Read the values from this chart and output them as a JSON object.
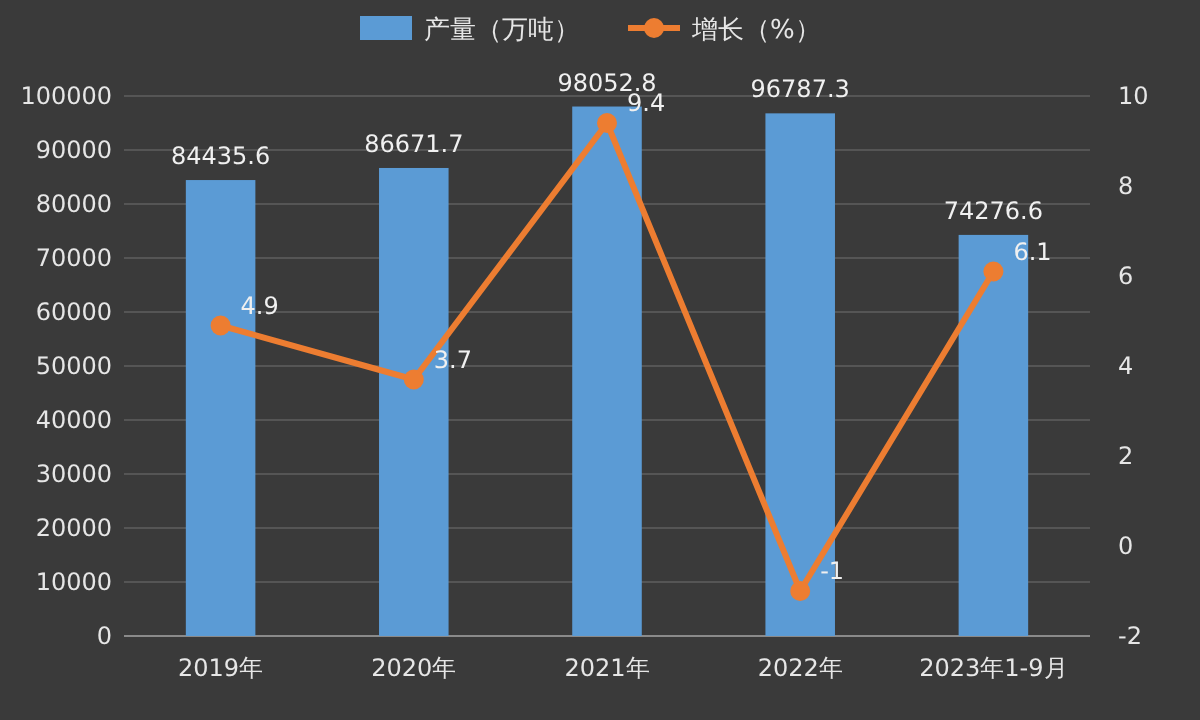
{
  "chart_data": {
    "type": "bar",
    "categories": [
      "2019年",
      "2020年",
      "2021年",
      "2022年",
      "2023年1-9月"
    ],
    "series": [
      {
        "name": "产量（万吨）",
        "color": "#5b9bd5",
        "values": [
          84435.6,
          86671.7,
          98052.8,
          96787.3,
          74276.6
        ]
      },
      {
        "name": "增长（%）",
        "type": "line",
        "axis": "y2",
        "color": "#ed7d31",
        "values": [
          4.9,
          3.7,
          9.4,
          -1,
          6.1
        ]
      }
    ],
    "ylim": [
      0,
      100000
    ],
    "yticks": [
      0,
      10000,
      20000,
      30000,
      40000,
      50000,
      60000,
      70000,
      80000,
      90000,
      100000
    ],
    "y2lim": [
      -2,
      10
    ],
    "y2ticks": [
      -2,
      0,
      2,
      4,
      6,
      8,
      10
    ],
    "grid": "y",
    "legend": "top",
    "data_labels": true,
    "marker": "circle"
  }
}
